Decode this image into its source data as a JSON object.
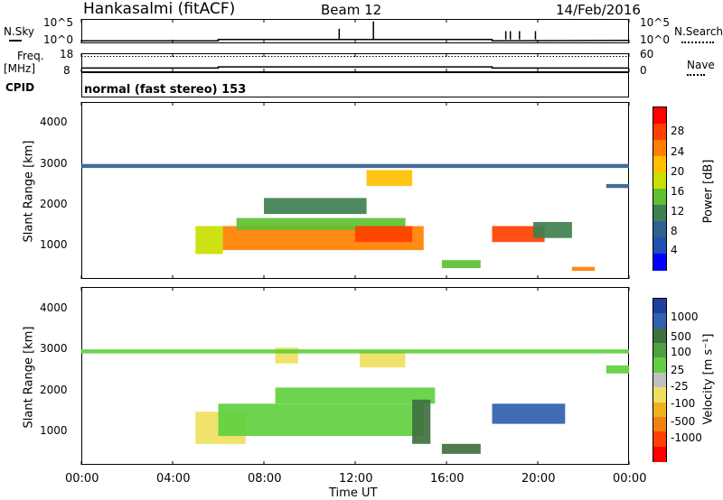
{
  "header": {
    "station": "Hankasalmi (fitACF)",
    "beam": "Beam 12",
    "date": "14/Feb/2016"
  },
  "noise_panel": {
    "left_label": "N.Sky",
    "right_label": "N.Search",
    "left_ticks": [
      "10^5",
      "10^0"
    ],
    "right_ticks": [
      "10^5",
      "10^0"
    ]
  },
  "freq_panel": {
    "left_label_top": "Freq.",
    "left_label_unit": "[MHz]",
    "right_label": "Nave",
    "left_ticks": [
      "18",
      "8"
    ],
    "right_ticks": [
      "60",
      "0"
    ]
  },
  "cpid": {
    "label": "CPID",
    "value": "normal (fast stereo) 153"
  },
  "power_panel": {
    "ylabel": "Slant Range [km]",
    "yticks": [
      "4000",
      "3000",
      "2000",
      "1000"
    ],
    "colorbar_title": "Power [dB]",
    "colorbar_ticks": [
      "28",
      "24",
      "20",
      "16",
      "12",
      "8",
      "4"
    ],
    "colorbar_colors": [
      "#ff0000",
      "#ff4000",
      "#ff8000",
      "#ffc000",
      "#c8e000",
      "#60c030",
      "#408050",
      "#306090",
      "#2050b0",
      "#0000ff"
    ]
  },
  "velocity_panel": {
    "ylabel": "Slant Range [km]",
    "yticks": [
      "4000",
      "3000",
      "2000",
      "1000"
    ],
    "colorbar_title": "Velocity [m s⁻¹]",
    "colorbar_ticks": [
      "1000",
      "500",
      "100",
      "25",
      "-25",
      "-100",
      "-500",
      "-1000"
    ],
    "colorbar_colors": [
      "#2040a0",
      "#3060b0",
      "#407040",
      "#50a040",
      "#60d040",
      "#c0c0c0",
      "#f0e060",
      "#f0b020",
      "#f08010",
      "#ff4000",
      "#ff0000"
    ]
  },
  "xaxis": {
    "ticks": [
      "00:00",
      "04:00",
      "08:00",
      "12:00",
      "16:00",
      "20:00",
      "00:00"
    ],
    "label": "Time UT"
  },
  "chart_data": [
    {
      "type": "line",
      "name": "noise",
      "x_hours": [
        0,
        6,
        6,
        18,
        18,
        24
      ],
      "n_sky_log10": [
        0.5,
        0.5,
        0.8,
        0.8,
        0.5,
        0.6
      ],
      "ylim": [
        0,
        5
      ],
      "xlim": [
        0,
        24
      ]
    },
    {
      "type": "line",
      "name": "frequency",
      "x_hours": [
        0,
        6,
        6,
        18,
        18,
        24
      ],
      "freq_mhz": [
        10.2,
        10.2,
        10.8,
        10.8,
        10.2,
        10.2
      ],
      "nave": [
        50,
        50,
        50,
        50,
        50,
        50
      ],
      "ylim": [
        8,
        18
      ],
      "xlim": [
        0,
        24
      ]
    },
    {
      "type": "heatmap",
      "name": "power",
      "xlim": [
        0,
        24
      ],
      "ylim": [
        180,
        4600
      ],
      "units": "dB",
      "clim": [
        0,
        30
      ],
      "regions": [
        {
          "x": [
            5.0,
            6.2
          ],
          "y": [
            800,
            1500
          ],
          "v": 18
        },
        {
          "x": [
            6.2,
            15.0
          ],
          "y": [
            900,
            1500
          ],
          "v": 22
        },
        {
          "x": [
            6.8,
            14.2
          ],
          "y": [
            1400,
            1700
          ],
          "v": 12
        },
        {
          "x": [
            12.0,
            14.5
          ],
          "y": [
            1100,
            1500
          ],
          "v": 27
        },
        {
          "x": [
            8.0,
            12.5
          ],
          "y": [
            1800,
            2200
          ],
          "v": 10
        },
        {
          "x": [
            12.5,
            14.5
          ],
          "y": [
            2500,
            2900
          ],
          "v": 20
        },
        {
          "x": [
            18.0,
            20.3
          ],
          "y": [
            1100,
            1500
          ],
          "v": 26
        },
        {
          "x": [
            19.8,
            21.5
          ],
          "y": [
            1200,
            1600
          ],
          "v": 10
        },
        {
          "x": [
            15.8,
            17.5
          ],
          "y": [
            450,
            650
          ],
          "v": 14
        },
        {
          "x": [
            21.5,
            22.5
          ],
          "y": [
            380,
            480
          ],
          "v": 24
        },
        {
          "x": [
            0.0,
            24.0
          ],
          "y": [
            2950,
            3050
          ],
          "v": 6
        },
        {
          "x": [
            23.0,
            24.0
          ],
          "y": [
            2450,
            2550
          ],
          "v": 8
        }
      ]
    },
    {
      "type": "heatmap",
      "name": "velocity",
      "xlim": [
        0,
        24
      ],
      "ylim": [
        180,
        4600
      ],
      "units": "m s-1",
      "clim": [
        -1000,
        1000
      ],
      "regions": [
        {
          "x": [
            5.0,
            7.2
          ],
          "y": [
            700,
            1500
          ],
          "v": -300
        },
        {
          "x": [
            6.0,
            15.0
          ],
          "y": [
            900,
            1700
          ],
          "v": 0
        },
        {
          "x": [
            8.5,
            15.5
          ],
          "y": [
            1700,
            2100
          ],
          "v": 0
        },
        {
          "x": [
            14.5,
            15.3
          ],
          "y": [
            700,
            1800
          ],
          "v": 150
        },
        {
          "x": [
            18.0,
            21.2
          ],
          "y": [
            1200,
            1700
          ],
          "v": 700
        },
        {
          "x": [
            8.5,
            9.5
          ],
          "y": [
            2700,
            3100
          ],
          "v": -300
        },
        {
          "x": [
            12.2,
            14.2
          ],
          "y": [
            2600,
            3000
          ],
          "v": -200
        },
        {
          "x": [
            15.8,
            17.5
          ],
          "y": [
            450,
            700
          ],
          "v": 150
        },
        {
          "x": [
            0.0,
            24.0
          ],
          "y": [
            2950,
            3050
          ],
          "v": 0
        },
        {
          "x": [
            23.0,
            24.0
          ],
          "y": [
            2450,
            2650
          ],
          "v": 0
        }
      ]
    }
  ]
}
